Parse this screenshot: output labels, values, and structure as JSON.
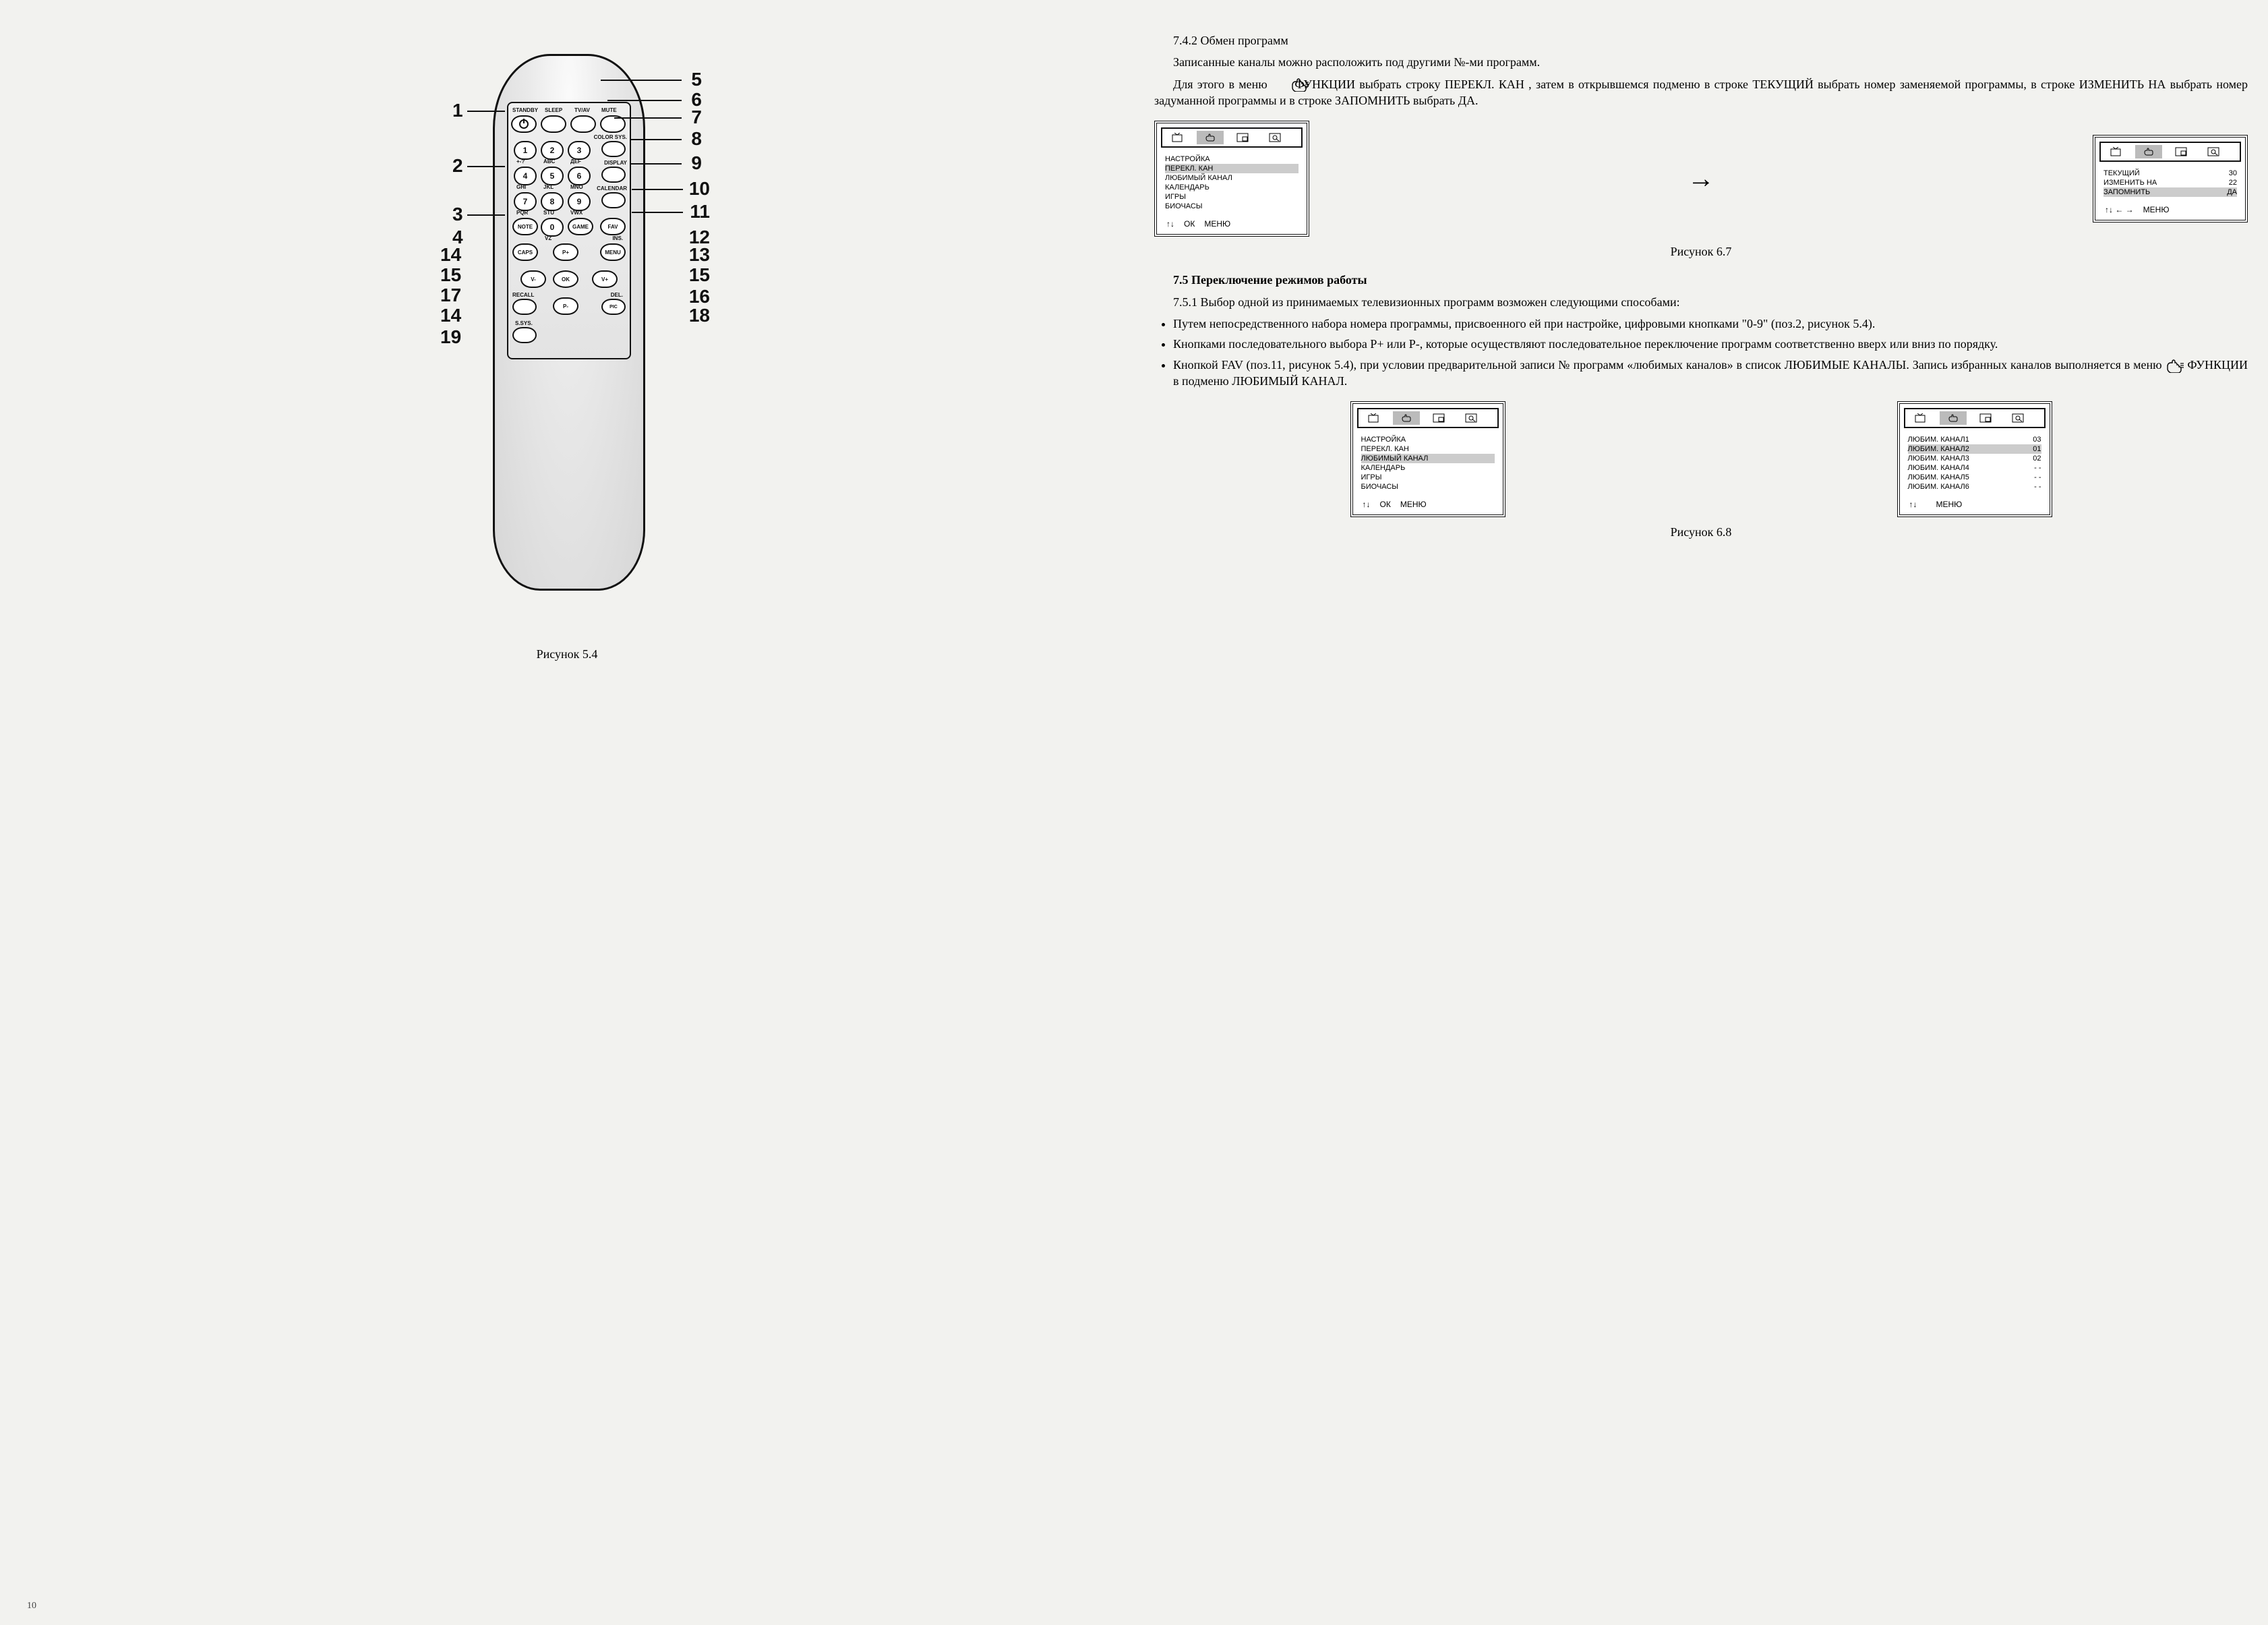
{
  "left": {
    "caption": "Рисунок 5.4",
    "page_number": "10",
    "top_labels": {
      "standby": "STANDBY",
      "sleep": "SLEEP",
      "tvav": "TV/AV",
      "mute": "MUTE"
    },
    "side_labels": {
      "colorsys": "COLOR SYS.",
      "display": "DISPLAY",
      "calendar": "CALENDAR",
      "ins": "INS.",
      "del": "DEL.",
      "ssys": "S.SYS."
    },
    "keypad": {
      "1": "1",
      "2": "2",
      "3": "3",
      "4": "4",
      "5": "5",
      "6": "6",
      "7": "7",
      "8": "8",
      "9": "9",
      "0": "0",
      "sub": {
        "1": "+-?",
        "2": "ABC",
        "3": "ДЕF",
        "4": "GHI",
        "5": "JKL",
        "6": "MNO",
        "7": "PQR",
        "8": "STU",
        "9": "VWX",
        "0": "VZ"
      }
    },
    "buttons": {
      "note": "NOTE",
      "game": "GAME",
      "fav": "FAV",
      "caps": "CAPS",
      "menu": "MENU",
      "pplus": "P+",
      "pminus": "P-",
      "vminus": "V-",
      "vplus": "V+",
      "ok": "OK",
      "recall": "RECALL",
      "pic": "PIC"
    },
    "callouts": {
      "1": "1",
      "2": "2",
      "3": "3",
      "4": "4",
      "5": "5",
      "6": "6",
      "7": "7",
      "8": "8",
      "9": "9",
      "10": "10",
      "11": "11",
      "12": "12",
      "13": "13",
      "14": "14",
      "15l": "15",
      "15r": "15",
      "16": "16",
      "17": "17",
      "18": "18",
      "19": "19"
    }
  },
  "right": {
    "h742": "7.4.2  Обмен программ",
    "p1": "Записанные каналы можно расположить под другими №-ми программ.",
    "p2a": "Для этого в меню",
    "p2b": "ФУНКЦИИ выбрать строку ПЕРЕКЛ. КАН , затем в открывшемся подменю в строке ТЕКУЩИЙ выбрать номер заменяемой программы, в строке ИЗМЕНИТЬ НА выбрать номер задуманной программы и в строке ЗАПОМНИТЬ выбрать ДА.",
    "fig67": {
      "left_menu": [
        "НАСТРОЙКА",
        "ПЕРЕКЛ. КАН",
        "ЛЮБИМЫЙ КАНАЛ",
        "КАЛЕНДАРЬ",
        "ИГРЫ",
        "БИОЧАСЫ"
      ],
      "left_hl_index": 1,
      "left_foot": [
        "↑↓",
        "ОК",
        "МЕНЮ"
      ],
      "right_menu": [
        {
          "k": "ТЕКУЩИЙ",
          "v": "30"
        },
        {
          "k": "ИЗМЕНИТЬ НА",
          "v": "22"
        },
        {
          "k": "ЗАПОМНИТЬ",
          "v": "ДА"
        }
      ],
      "right_hl_index": 2,
      "right_foot": [
        "↑↓ ← →",
        "МЕНЮ"
      ],
      "caption": "Рисунок 6.7"
    },
    "h75": "7.5  Переключение режимов работы",
    "p751": "7.5.1 Выбор одной из принимаемых телевизионных программ возможен следующими способами:",
    "bullets": [
      "Путем непосредственного набора номера программы, присвоенного ей при настройке, цифровыми кнопками \"0-9\" (поз.2, рисунок 5.4).",
      "Кнопками последовательного выбора   Р+ или Р-, которые осуществляют последовательное переключение программ соответственно вверх или вниз по порядку.",
      "Кнопкой FAV (поз.11, рисунок 5.4), при условии предварительной записи № программ «любимых каналов» в список ЛЮБИМЫЕ КАНАЛЫ. Запись избранных каналов выполняется в меню"
    ],
    "bullets3_tail": "ФУНКЦИИ в подменю ЛЮБИМЫЙ КАНАЛ.",
    "fig68": {
      "left_menu": [
        "НАСТРОЙКА",
        "ПЕРЕКЛ. КАН",
        "ЛЮБИМЫЙ КАНАЛ",
        "КАЛЕНДАРЬ",
        "ИГРЫ",
        "БИОЧАСЫ"
      ],
      "left_hl_index": 2,
      "left_foot": [
        "↑↓",
        "ОК",
        "МЕНЮ"
      ],
      "right_menu": [
        {
          "k": "ЛЮБИМ. КАНАЛ1",
          "v": "03"
        },
        {
          "k": "ЛЮБИМ. КАНАЛ2",
          "v": "01"
        },
        {
          "k": "ЛЮБИМ. КАНАЛ3",
          "v": "02"
        },
        {
          "k": "ЛЮБИМ. КАНАЛ4",
          "v": "- -"
        },
        {
          "k": "ЛЮБИМ. КАНАЛ5",
          "v": "- -"
        },
        {
          "k": "ЛЮБИМ. КАНАЛ6",
          "v": "- -"
        }
      ],
      "right_hl_index": 1,
      "right_foot": [
        "↑↓",
        "",
        "МЕНЮ"
      ],
      "caption": "Рисунок 6.8"
    }
  }
}
